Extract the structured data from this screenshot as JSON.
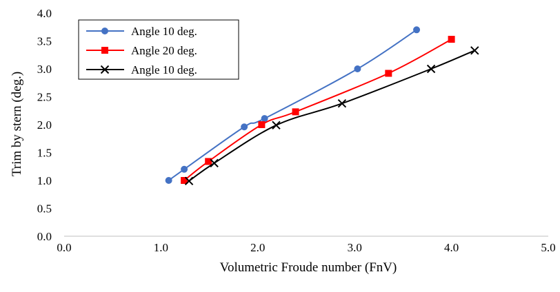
{
  "chart_data": {
    "type": "line",
    "xlabel": "Volumetric Froude number (FnV)",
    "ylabel": "Trim by stern (deg.)",
    "xlim": [
      0,
      5
    ],
    "ylim": [
      0,
      4
    ],
    "x_ticks": [
      "0.0",
      "1.0",
      "2.0",
      "3.0",
      "4.0",
      "5.0"
    ],
    "y_ticks": [
      "0.0",
      "0.5",
      "1.0",
      "1.5",
      "2.0",
      "2.5",
      "3.0",
      "3.5",
      "4.0"
    ],
    "grid": false,
    "legend_position": "top-left",
    "series": [
      {
        "name": "Angle 10 deg.",
        "color": "#4472C4",
        "marker": "circle",
        "x": [
          1.08,
          1.24,
          1.86,
          2.07,
          3.03,
          3.64
        ],
        "y": [
          1.0,
          1.2,
          1.96,
          2.11,
          3.0,
          3.7
        ]
      },
      {
        "name": "Angle 20 deg.",
        "color": "#FF0000",
        "marker": "square",
        "x": [
          1.24,
          1.49,
          2.04,
          2.39,
          3.35,
          4.0
        ],
        "y": [
          1.0,
          1.34,
          2.0,
          2.23,
          2.92,
          3.53
        ]
      },
      {
        "name": "Angle 10 deg.",
        "color": "#000000",
        "marker": "x",
        "x": [
          1.29,
          1.55,
          2.19,
          2.87,
          3.79,
          4.24
        ],
        "y": [
          0.99,
          1.31,
          1.99,
          2.38,
          3.0,
          3.33
        ]
      }
    ]
  }
}
